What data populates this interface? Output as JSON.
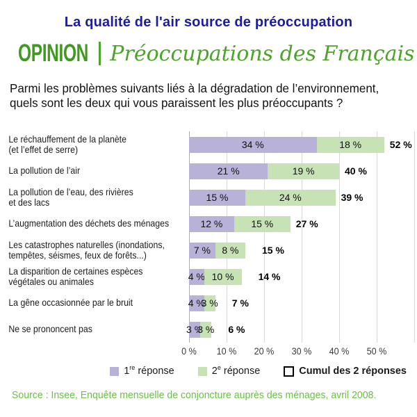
{
  "page": {
    "title": "La qualité de l'air source de préoccupation",
    "section_label": "OPINION",
    "section_title": "Préoccupations des Français",
    "question_line1": "Parmi les problèmes suivants liés à la dégradation de l’environnement,",
    "question_line2": "quels sont les deux qui vous paraissent les plus préoccupants ?",
    "source": "Source : Insee, Enquête mensuelle de conjoncture auprès des ménages, avril 2008."
  },
  "colors": {
    "title_blue": "#1c1c9e",
    "green_dark": "#3f9a1f",
    "green_mid": "#4da32b",
    "green_light": "#6abf45",
    "bar_first": "#b8b1d8",
    "bar_second": "#c7e2b5",
    "gridline": "#d8d8d8",
    "axis_line": "#ababab"
  },
  "chart_data": {
    "type": "bar",
    "orientation": "horizontal",
    "stacked": true,
    "title": "Préoccupations des Français",
    "unit": "%",
    "value_suffix": " %",
    "grid": true,
    "legend_position": "bottom",
    "xlim": [
      0,
      60
    ],
    "x_ticks": [
      "0 %",
      "10 %",
      "20 %",
      "30 %",
      "40 %",
      "50 %"
    ],
    "categories": [
      [
        "Le réchauffement de la planète",
        "(et l’effet de serre)"
      ],
      [
        "La pollution de l’air"
      ],
      [
        "La pollution de l’eau, des rivières",
        "et des lacs"
      ],
      [
        "L’augmentation des déchets des ménages"
      ],
      [
        "Les catastrophes naturelles (inondations,",
        "tempêtes, séismes, feux de forêts...)"
      ],
      [
        "La disparition de certaines espèces",
        "végétales ou animales"
      ],
      [
        "La gêne occasionnée par le bruit"
      ],
      [
        "Ne se prononcent pas"
      ]
    ],
    "series": [
      {
        "name": "1re réponse",
        "color": "#b8b1d8",
        "values": [
          34,
          21,
          15,
          12,
          7,
          4,
          4,
          3
        ]
      },
      {
        "name": "2e réponse",
        "color": "#c7e2b5",
        "values": [
          18,
          19,
          24,
          15,
          8,
          10,
          3,
          3
        ]
      }
    ],
    "totals": {
      "name": "Cumul des 2 réponses",
      "values": [
        52,
        40,
        39,
        27,
        15,
        14,
        7,
        6
      ]
    }
  },
  "legend": {
    "items": [
      {
        "swatch": "first",
        "num": "1",
        "sup": "re",
        "label": "réponse",
        "bold": false
      },
      {
        "swatch": "second",
        "num": "2",
        "sup": "e",
        "label": "réponse",
        "bold": false
      },
      {
        "swatch": "cumul",
        "num": "",
        "sup": "",
        "label": "Cumul des 2 réponses",
        "bold": true
      }
    ]
  }
}
